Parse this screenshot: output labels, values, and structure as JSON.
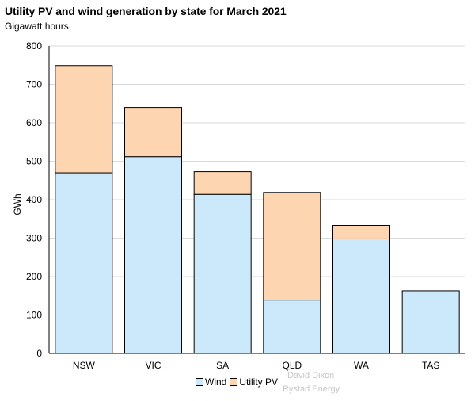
{
  "header": {
    "title": "Utility PV and wind generation by state for March 2021",
    "subtitle": "Gigawatt hours"
  },
  "watermark": {
    "line1": "David Dixon",
    "line2": "Rystad Energy"
  },
  "colors": {
    "wind": "#cce9fb",
    "utility_pv": "#fdd5b1",
    "grid": "#d9d9d9",
    "bar_edge": "#000000"
  },
  "chart_data": {
    "type": "bar",
    "stacked": true,
    "title": "Utility PV and wind generation by state for March 2021",
    "subtitle": "Gigawatt hours",
    "xlabel": "",
    "ylabel": "GWh",
    "ylim": [
      0,
      800
    ],
    "yticks": [
      0,
      100,
      200,
      300,
      400,
      500,
      600,
      700,
      800
    ],
    "grid": true,
    "legend": "bottom",
    "categories": [
      "NSW",
      "VIC",
      "SA",
      "QLD",
      "WA",
      "TAS"
    ],
    "series": [
      {
        "name": "Wind",
        "color": "#cce9fb",
        "values": [
          470,
          512,
          414,
          139,
          298,
          163
        ]
      },
      {
        "name": "Utility PV",
        "color": "#fdd5b1",
        "values": [
          279,
          128,
          59,
          280,
          35,
          0
        ]
      }
    ]
  }
}
